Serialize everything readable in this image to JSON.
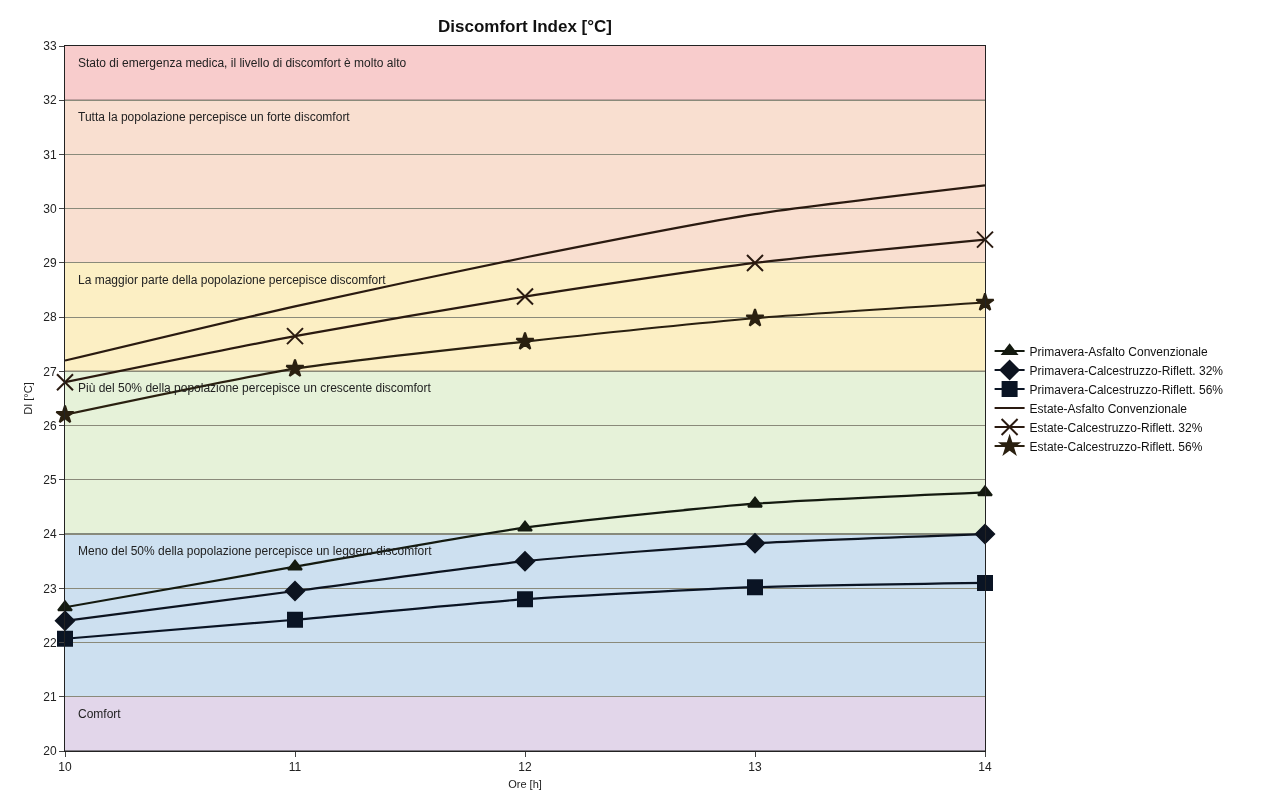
{
  "chart_data": {
    "type": "line",
    "title": "Discomfort Index [°C]",
    "xlabel": "Ore [h]",
    "ylabel": "DI [°C]",
    "x": [
      10,
      11,
      12,
      13,
      14
    ],
    "series": [
      {
        "name": "Primavera-Asfalto Convenzionale",
        "color": "#141a10",
        "marker": "triangle",
        "values": [
          22.65,
          23.4,
          24.12,
          24.56,
          24.77
        ]
      },
      {
        "name": "Primavera-Calcestruzzo-Riflett. 32%",
        "color": "#0d1420",
        "marker": "diamond",
        "values": [
          22.4,
          22.95,
          23.5,
          23.83,
          24.0
        ]
      },
      {
        "name": "Primavera-Calcestruzzo-Riflett. 56%",
        "color": "#0a1424",
        "marker": "square",
        "values": [
          22.07,
          22.42,
          22.8,
          23.02,
          23.1
        ]
      },
      {
        "name": "Estate-Asfalto Convenzionale",
        "color": "#2a1a10",
        "marker": "none",
        "values": [
          27.2,
          28.2,
          29.1,
          29.9,
          30.43
        ]
      },
      {
        "name": "Estate-Calcestruzzo-Riflett. 32%",
        "color": "#2a1a10",
        "marker": "cross",
        "values": [
          26.8,
          27.65,
          28.38,
          29.0,
          29.43
        ]
      },
      {
        "name": "Estate-Calcestruzzo-Riflett. 56%",
        "color": "#2a2010",
        "marker": "star",
        "values": [
          26.2,
          27.05,
          27.55,
          27.98,
          28.27
        ]
      }
    ],
    "bands": [
      {
        "axis": "y",
        "from": 32,
        "to": 33,
        "label": "Stato di emergenza medica, il livello di discomfort è molto alto",
        "color": "#f8cccc"
      },
      {
        "axis": "y",
        "from": 29,
        "to": 32,
        "label": "Tutta la popolazione percepisce un forte discomfort",
        "color": "#f9dfd0"
      },
      {
        "axis": "y",
        "from": 27,
        "to": 29,
        "label": "La maggior parte della popolazione percepisce discomfort",
        "color": "#fcefc4"
      },
      {
        "axis": "y",
        "from": 24,
        "to": 27,
        "label": "Più del 50% della popolazione percepisce un crescente discomfort",
        "color": "#e6f2d9"
      },
      {
        "axis": "y",
        "from": 21,
        "to": 24,
        "label": "Meno del 50% della popolazione percepisce un leggero discomfort",
        "color": "#cde0f0"
      },
      {
        "axis": "y",
        "from": 20,
        "to": 21,
        "label": "Comfort",
        "color": "#e2d6ea"
      }
    ],
    "xlim": [
      10,
      14
    ],
    "xticks": [
      10,
      11,
      12,
      13,
      14
    ],
    "ylim": [
      20,
      33
    ],
    "yticks": [
      20,
      21,
      22,
      23,
      24,
      25,
      26,
      27,
      28,
      29,
      30,
      31,
      32,
      33
    ],
    "grid": "y",
    "legend": "right",
    "line_style": "solid"
  }
}
